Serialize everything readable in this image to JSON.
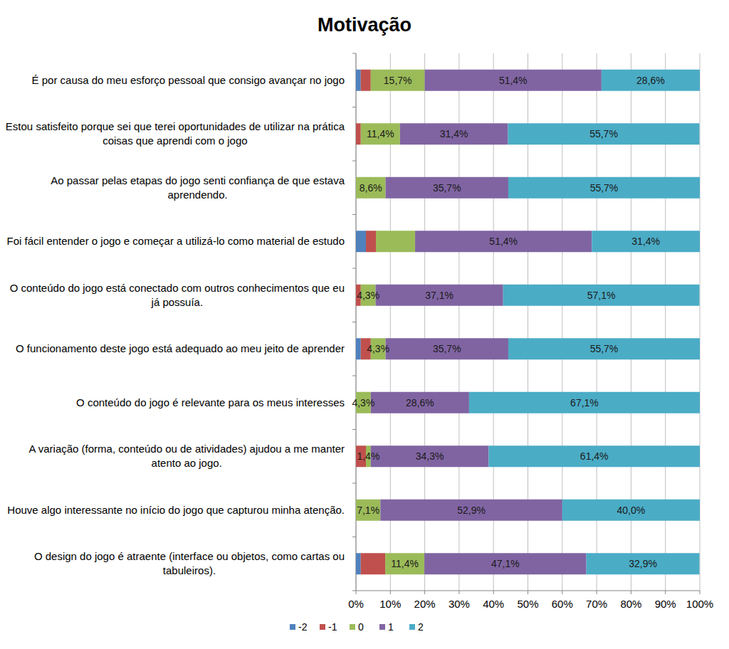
{
  "chart_data": {
    "type": "bar",
    "orientation": "horizontal",
    "stacked": true,
    "title": "Motivação",
    "categories": [
      "É por causa do meu esforço pessoal que consigo avançar no jogo",
      "Estou satisfeito porque sei que terei oportunidades de utilizar na prática coisas que aprendi com o jogo",
      "Ao passar pelas etapas do jogo senti confiança de que estava aprendendo.",
      "Foi fácil entender o jogo e começar a utilizá-lo como material de estudo",
      "O conteúdo do jogo está conectado com outros conhecimentos que eu já possuía.",
      "O funcionamento deste jogo está adequado ao meu jeito de aprender",
      "O conteúdo do jogo é relevante para os meus interesses",
      "A variação (forma, conteúdo ou de atividades) ajudou a me manter atento ao jogo.",
      "Houve algo interessante no início do jogo que capturou minha atenção.",
      "O design do jogo é atraente (interface ou objetos, como cartas ou tabuleiros)."
    ],
    "series": [
      {
        "name": "-2",
        "color": "#4f81bd",
        "values": [
          1.4,
          0,
          0,
          2.9,
          0,
          1.4,
          0,
          0,
          0,
          1.4
        ],
        "value_labels": [
          null,
          null,
          null,
          null,
          null,
          null,
          null,
          null,
          null,
          null
        ]
      },
      {
        "name": "-1",
        "color": "#c0504d",
        "values": [
          2.9,
          1.4,
          0,
          2.9,
          1.4,
          2.9,
          0,
          2.9,
          0,
          7.1
        ],
        "value_labels": [
          null,
          null,
          null,
          null,
          null,
          null,
          null,
          null,
          null,
          null
        ]
      },
      {
        "name": "0",
        "color": "#9bbb59",
        "values": [
          15.7,
          11.4,
          8.6,
          11.4,
          4.3,
          4.3,
          4.3,
          1.4,
          7.1,
          11.4
        ],
        "value_labels": [
          "15,7%",
          "11,4%",
          "8,6%",
          null,
          "4,3%",
          "4,3%",
          "4,3%",
          "1,4%",
          "7,1%",
          "11,4%"
        ]
      },
      {
        "name": "1",
        "color": "#8064a2",
        "values": [
          51.4,
          31.4,
          35.7,
          51.4,
          37.1,
          35.7,
          28.6,
          34.3,
          52.9,
          47.1
        ],
        "value_labels": [
          "51,4%",
          "31,4%",
          "35,7%",
          "51,4%",
          "37,1%",
          "35,7%",
          "28,6%",
          "34,3%",
          "52,9%",
          "47,1%"
        ]
      },
      {
        "name": "2",
        "color": "#4bacc6",
        "values": [
          28.6,
          55.7,
          55.7,
          31.4,
          57.1,
          55.7,
          67.1,
          61.4,
          40.0,
          32.9
        ],
        "value_labels": [
          "28,6%",
          "55,7%",
          "55,7%",
          "31,4%",
          "57,1%",
          "55,7%",
          "67,1%",
          "61,4%",
          "40,0%",
          "32,9%"
        ]
      }
    ],
    "xlim": [
      0,
      100
    ],
    "xticks": [
      {
        "value": 0,
        "label": "0%"
      },
      {
        "value": 10,
        "label": "10%"
      },
      {
        "value": 20,
        "label": "20%"
      },
      {
        "value": 30,
        "label": "30%"
      },
      {
        "value": 40,
        "label": "40%"
      },
      {
        "value": 50,
        "label": "50%"
      },
      {
        "value": 60,
        "label": "60%"
      },
      {
        "value": 70,
        "label": "70%"
      },
      {
        "value": 80,
        "label": "80%"
      },
      {
        "value": 90,
        "label": "90%"
      },
      {
        "value": 100,
        "label": "100%"
      }
    ],
    "grid": true,
    "data_labels": true,
    "legend": "bottom"
  }
}
